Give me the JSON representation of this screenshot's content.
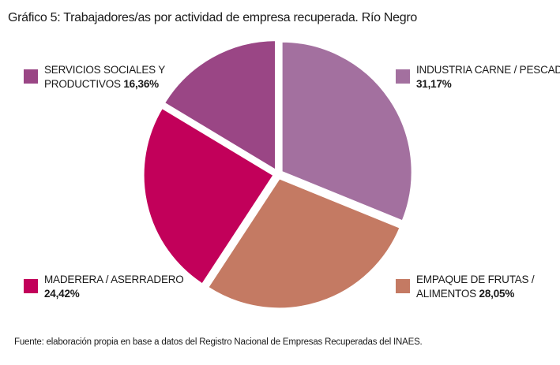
{
  "title": "Gráfico 5: Trabajadores/as por actividad de empresa recuperada. Río Negro",
  "source": "Fuente: elaboración propia en base a datos del Registro Nacional de Empresas Recuperadas del INAES.",
  "chart_data": {
    "type": "pie",
    "title": "Gráfico 5: Trabajadores/as por actividad de empresa recuperada. Río Negro",
    "slices": [
      {
        "label_lines": [
          "INDUSTRIA CARNE / PESCADO"
        ],
        "pct_label": "31,17%",
        "value": 31.17,
        "color": "#a3709f"
      },
      {
        "label_lines": [
          "EMPAQUE DE FRUTAS /",
          "ALIMENTOS"
        ],
        "pct_label": "28,05%",
        "value": 28.05,
        "color": "#c47a63"
      },
      {
        "label_lines": [
          "MADERERA / ASERRADERO"
        ],
        "pct_label": "24,42%",
        "value": 24.42,
        "color": "#c2005a"
      },
      {
        "label_lines": [
          "SERVICIOS SOCIALES Y",
          "PRODUCTIVOS"
        ],
        "pct_label": "16,36%",
        "value": 16.36,
        "color": "#9a4685"
      }
    ]
  }
}
